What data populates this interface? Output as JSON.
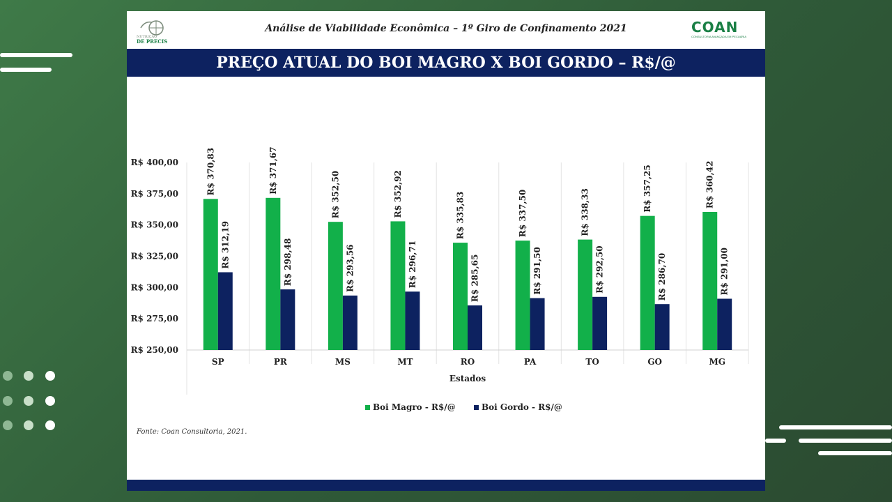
{
  "header": {
    "title": "Análise de Viabilidade Econômica – 1º Giro de Confinamento 2021",
    "logo_left_text": [
      "NUTRIÇÃO",
      "DE PRECISÃO"
    ],
    "logo_right_brand": "COAN",
    "logo_right_tagline": "CONSULTORIA AVANÇADA EM PECUÁRIA"
  },
  "banner": {
    "title": "PREÇO ATUAL DO BOI MAGRO X  BOI GORDO – R$/@"
  },
  "source": "Fonte: Coan Consultoria, 2021.",
  "colors": {
    "magro": "#12b04a",
    "gordo": "#0d2260",
    "banner": "#0d2260",
    "brand": "#1a7f45"
  },
  "chart_data": {
    "type": "bar",
    "title": "",
    "xlabel": "Estados",
    "ylabel": "",
    "categories": [
      "SP",
      "PR",
      "MS",
      "MT",
      "RO",
      "PA",
      "TO",
      "GO",
      "MG"
    ],
    "ylim": [
      250,
      400
    ],
    "yticks": [
      250,
      275,
      300,
      325,
      350,
      375,
      400
    ],
    "ytick_labels": [
      "R$ 250,00",
      "R$ 275,00",
      "R$ 300,00",
      "R$ 325,00",
      "R$ 350,00",
      "R$ 375,00",
      "R$ 400,00"
    ],
    "grid": "vertical separators",
    "legend": "bottom",
    "series": [
      {
        "name": "Boi Magro - R$/@",
        "values": [
          370.83,
          371.67,
          352.5,
          352.92,
          335.83,
          337.5,
          338.33,
          357.25,
          360.42
        ],
        "labels": [
          "R$ 370,83",
          "R$ 371,67",
          "R$ 352,50",
          "R$ 352,92",
          "R$ 335,83",
          "R$ 337,50",
          "R$ 338,33",
          "R$ 357,25",
          "R$ 360,42"
        ]
      },
      {
        "name": "Boi Gordo - R$/@",
        "values": [
          312.19,
          298.48,
          293.56,
          296.71,
          285.65,
          291.5,
          292.5,
          286.7,
          291.0
        ],
        "labels": [
          "R$ 312,19",
          "R$ 298,48",
          "R$ 293,56",
          "R$ 296,71",
          "R$ 285,65",
          "R$ 291,50",
          "R$ 292,50",
          "R$ 286,70",
          "R$ 291,00"
        ]
      }
    ]
  }
}
